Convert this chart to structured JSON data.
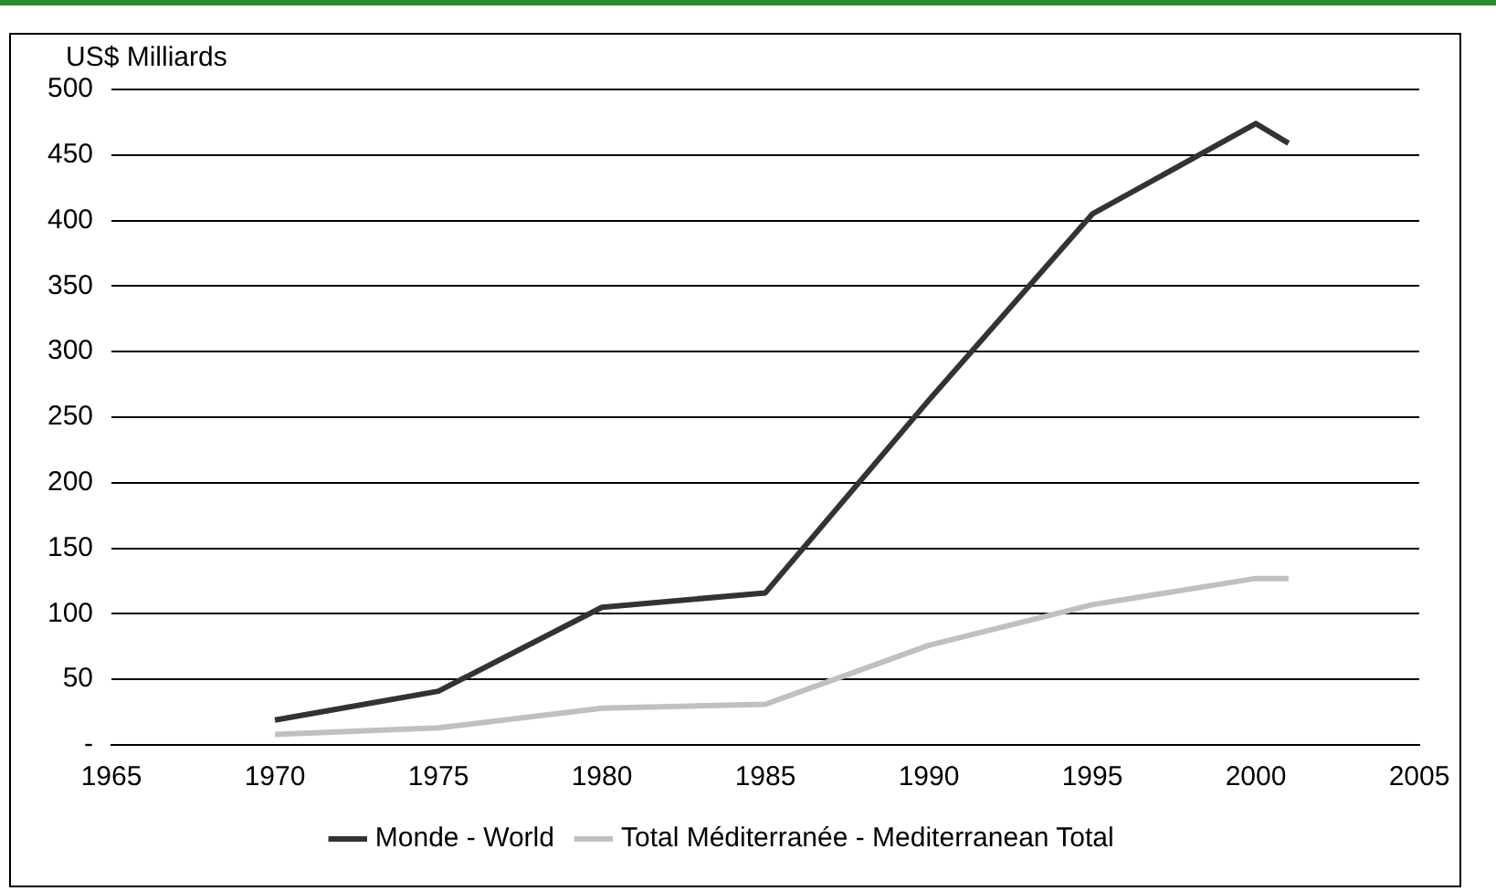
{
  "chart_data": {
    "type": "line",
    "ylabel": "US$ Milliards",
    "x": [
      1970,
      1975,
      1980,
      1985,
      1990,
      1995,
      2000,
      2001
    ],
    "series": [
      {
        "name": "Monde - World",
        "color": "#333333",
        "values": [
          19,
          41,
          105,
          116,
          263,
          405,
          474,
          459
        ]
      },
      {
        "name": "Total Méditerranée - Mediterranean Total",
        "color": "#c0c0c0",
        "values": [
          8,
          13,
          28,
          31,
          76,
          107,
          127,
          127
        ]
      }
    ],
    "xlim": [
      1965,
      2005
    ],
    "xticks": [
      1965,
      1970,
      1975,
      1980,
      1985,
      1990,
      1995,
      2000,
      2005
    ],
    "ylim": [
      0,
      500
    ],
    "yticks": [
      {
        "value": 0,
        "label": "-"
      },
      50,
      100,
      150,
      200,
      250,
      300,
      350,
      400,
      450,
      500
    ],
    "grid": "y",
    "legend": "bottom",
    "marker": "none",
    "line_style": "solid"
  }
}
